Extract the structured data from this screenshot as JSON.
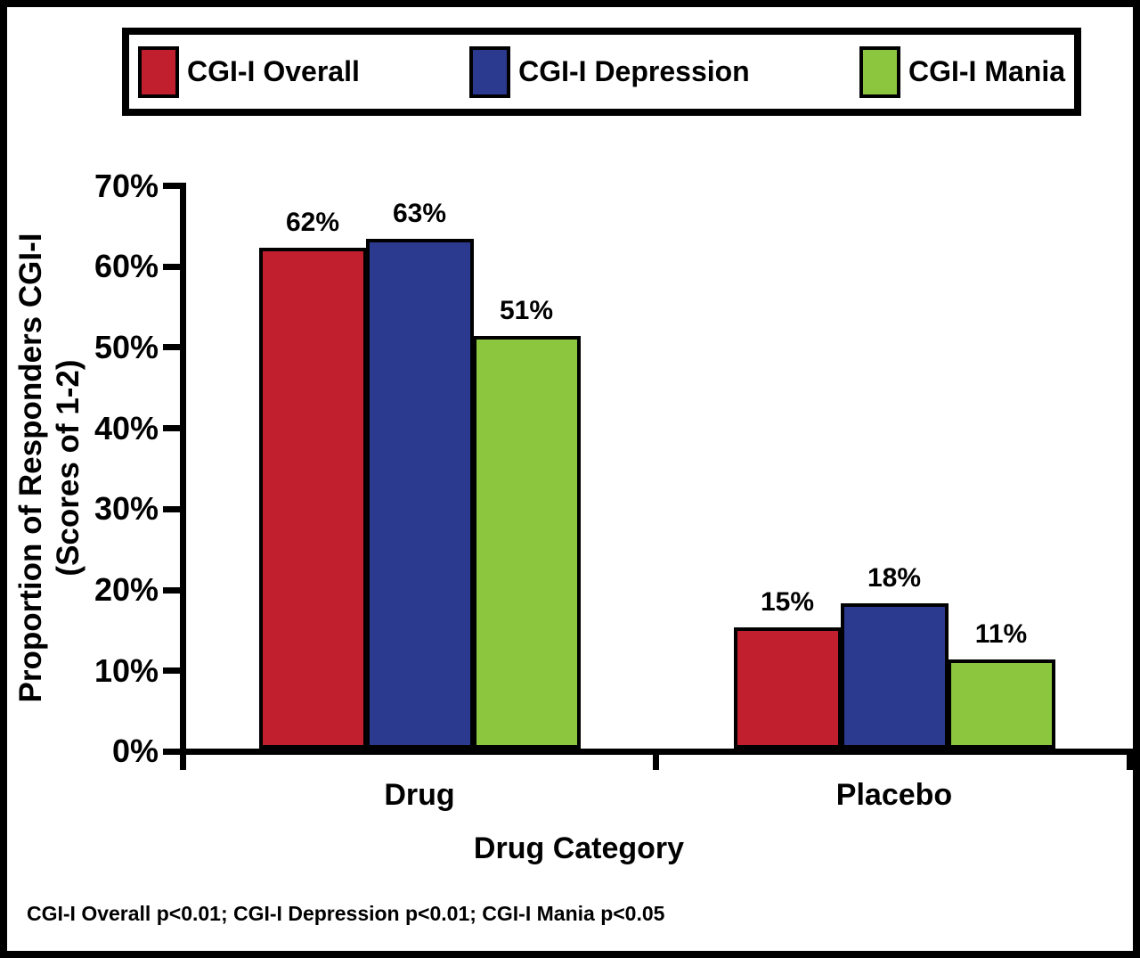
{
  "chart_data": {
    "type": "bar",
    "categories": [
      "Drug",
      "Placebo"
    ],
    "series": [
      {
        "name": "CGI-I Overall",
        "color": "#C21F2E",
        "values": [
          62,
          15
        ]
      },
      {
        "name": "CGI-I Depression",
        "color": "#2B3A8F",
        "values": [
          63,
          18
        ]
      },
      {
        "name": "CGI-I Mania",
        "color": "#8CC63F",
        "values": [
          51,
          11
        ]
      }
    ],
    "value_label_suffix": "%",
    "xlabel": "Drug Category",
    "ylabel_line1": "Proportion of Responders CGI-I",
    "ylabel_line2": "(Scores of 1-2)",
    "ylim": [
      0,
      70
    ],
    "yticks": [
      "70%",
      "60%",
      "50%",
      "40%",
      "30%",
      "20%",
      "10%",
      "0%"
    ],
    "legend_position": "top",
    "grid": false,
    "footnote": "CGI-I Overall p<0.01; CGI-I Depression p<0.01; CGI-I Mania p<0.05"
  }
}
